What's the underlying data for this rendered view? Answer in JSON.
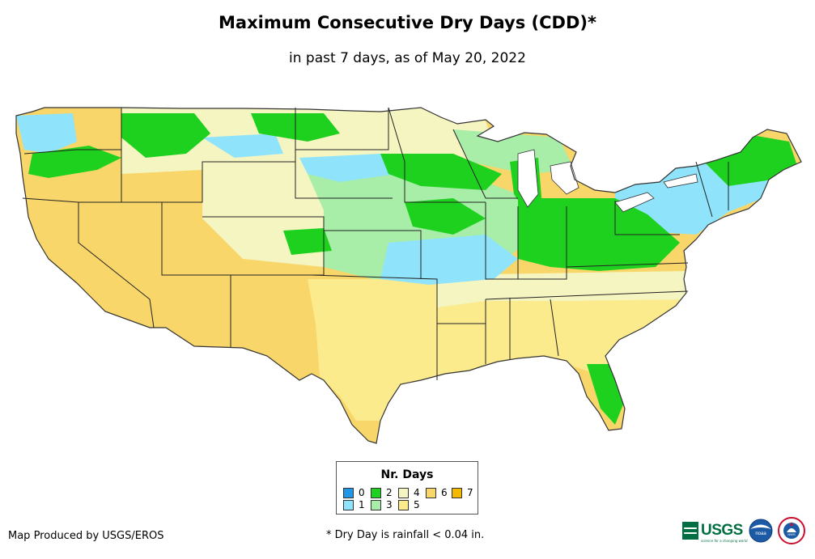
{
  "title": "Maximum Consecutive Dry Days (CDD)*",
  "subtitle": "in past 7 days, as of May 20, 2022",
  "legend": {
    "title": "Nr. Days",
    "items": [
      {
        "label": "0",
        "color": "#1f96e6"
      },
      {
        "label": "1",
        "color": "#8fe3fb"
      },
      {
        "label": "2",
        "color": "#1ed11e"
      },
      {
        "label": "3",
        "color": "#a8eda8"
      },
      {
        "label": "4",
        "color": "#f5f5c2"
      },
      {
        "label": "5",
        "color": "#fbeb8c"
      },
      {
        "label": "6",
        "color": "#f8d66a"
      },
      {
        "label": "7",
        "color": "#f5b800"
      }
    ]
  },
  "credit": "Map Produced by USGS/EROS",
  "footnote": "* Dry Day is rainfall < 0.04 in.",
  "logos": {
    "usgs_text": "USGS",
    "usgs_tagline": "science for a changing world",
    "noaa_text": "noaa",
    "nws_text": "NWS"
  },
  "colors": {
    "state_border": "#222222",
    "outline": "#333333"
  }
}
